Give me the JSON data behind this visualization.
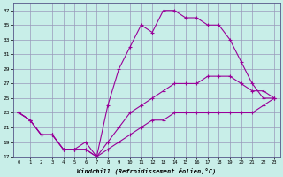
{
  "xlabel": "Windchill (Refroidissement éolien,°C)",
  "bg_color": "#c8eee8",
  "grid_color": "#9999bb",
  "line_color": "#990099",
  "hours": [
    0,
    1,
    2,
    3,
    4,
    5,
    6,
    7,
    8,
    9,
    10,
    11,
    12,
    13,
    14,
    15,
    16,
    17,
    18,
    19,
    20,
    21,
    22,
    23
  ],
  "series_max": [
    23,
    22,
    20,
    20,
    18,
    18,
    19,
    17,
    24,
    29,
    32,
    35,
    34,
    37,
    37,
    36,
    36,
    35,
    35,
    33,
    30,
    27,
    25,
    25
  ],
  "series_mid": [
    23,
    22,
    20,
    20,
    18,
    18,
    18,
    17,
    19,
    21,
    23,
    24,
    25,
    26,
    27,
    27,
    27,
    28,
    28,
    28,
    27,
    26,
    26,
    25
  ],
  "series_min": [
    23,
    22,
    20,
    20,
    18,
    18,
    18,
    17,
    18,
    19,
    20,
    21,
    22,
    22,
    23,
    23,
    23,
    23,
    23,
    23,
    23,
    23,
    24,
    25
  ],
  "ylim": [
    17,
    38
  ],
  "yticks": [
    17,
    19,
    21,
    23,
    25,
    27,
    29,
    31,
    33,
    35,
    37
  ],
  "xlim": [
    -0.5,
    23.5
  ],
  "xtick_labels": [
    "0",
    "1",
    "2",
    "3",
    "4",
    "5",
    "6",
    "7",
    "8",
    "9",
    "10",
    "11",
    "12",
    "13",
    "14",
    "15",
    "16",
    "17",
    "18",
    "19",
    "20",
    "21",
    "22",
    "23"
  ]
}
